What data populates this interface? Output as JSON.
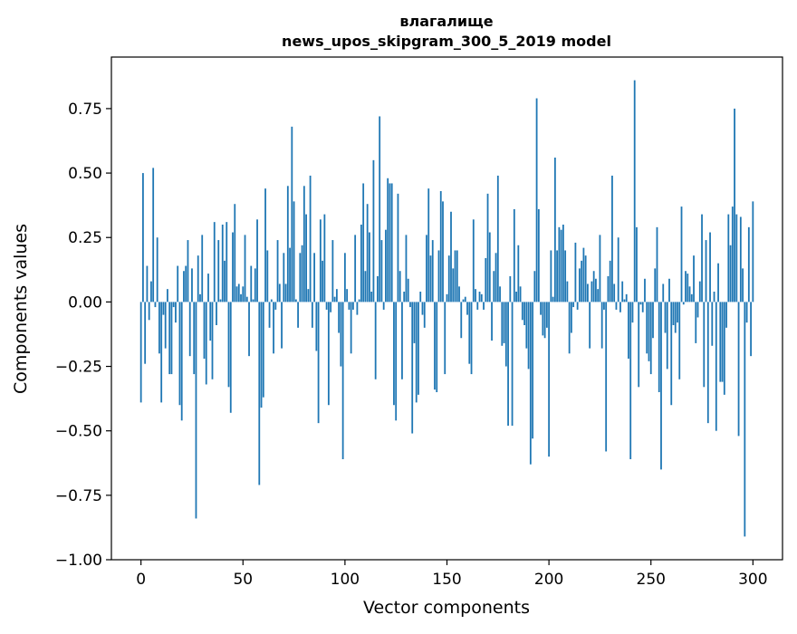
{
  "chart_data": {
    "type": "bar",
    "title": "влагалище",
    "subtitle": "news_upos_skipgram_300_5_2019 model",
    "xlabel": "Vector components",
    "ylabel": "Components values",
    "xlim": [
      -14.5,
      314.5
    ],
    "ylim": [
      -1.0,
      0.95
    ],
    "xticks": [
      0,
      50,
      100,
      150,
      200,
      250,
      300
    ],
    "xtick_labels": [
      "0",
      "50",
      "100",
      "150",
      "200",
      "250",
      "300"
    ],
    "yticks": [
      -1.0,
      -0.75,
      -0.5,
      -0.25,
      0.0,
      0.25,
      0.5,
      0.75
    ],
    "ytick_labels": [
      "−1.00",
      "−0.75",
      "−0.50",
      "−0.25",
      "0.00",
      "0.25",
      "0.50",
      "0.75"
    ],
    "bar_color": "#1f77b4",
    "grid": false,
    "values": [
      -0.39,
      0.5,
      -0.24,
      0.14,
      -0.07,
      0.08,
      0.52,
      -0.02,
      0.25,
      -0.2,
      -0.39,
      -0.05,
      -0.18,
      0.05,
      -0.28,
      -0.28,
      -0.02,
      -0.08,
      0.14,
      -0.4,
      -0.46,
      0.12,
      0.14,
      0.24,
      -0.21,
      0.13,
      -0.28,
      -0.84,
      0.18,
      0.03,
      0.26,
      -0.22,
      -0.32,
      0.11,
      -0.15,
      -0.3,
      0.31,
      -0.09,
      0.24,
      0.01,
      0.3,
      0.16,
      0.31,
      -0.33,
      -0.43,
      0.27,
      0.38,
      0.06,
      0.07,
      0.03,
      0.06,
      0.26,
      0.02,
      -0.21,
      0.14,
      0.01,
      0.13,
      0.32,
      -0.71,
      -0.41,
      -0.37,
      0.44,
      0.2,
      -0.1,
      0.01,
      -0.2,
      -0.03,
      0.24,
      0.07,
      -0.18,
      0.19,
      0.07,
      0.45,
      0.21,
      0.68,
      0.39,
      0.01,
      -0.1,
      0.19,
      0.22,
      0.45,
      0.34,
      0.05,
      0.49,
      -0.1,
      0.19,
      -0.19,
      -0.47,
      0.32,
      0.16,
      0.34,
      -0.03,
      -0.4,
      -0.04,
      0.24,
      0.02,
      0.05,
      -0.12,
      -0.25,
      -0.61,
      0.19,
      0.05,
      -0.03,
      -0.2,
      -0.03,
      0.26,
      -0.05,
      0.01,
      0.3,
      0.46,
      0.12,
      0.38,
      0.27,
      0.04,
      0.55,
      -0.3,
      0.1,
      0.72,
      0.24,
      -0.03,
      0.28,
      0.48,
      0.46,
      0.46,
      -0.4,
      -0.46,
      0.42,
      0.12,
      -0.3,
      0.04,
      0.26,
      0.09,
      -0.02,
      -0.51,
      -0.16,
      -0.39,
      -0.36,
      0.04,
      -0.05,
      -0.1,
      0.26,
      0.44,
      0.18,
      0.24,
      -0.34,
      -0.35,
      0.2,
      0.43,
      0.39,
      -0.28,
      0.03,
      0.18,
      0.35,
      0.13,
      0.2,
      0.2,
      0.06,
      -0.14,
      0.01,
      0.02,
      -0.05,
      -0.24,
      -0.28,
      0.32,
      0.05,
      -0.03,
      0.04,
      0.03,
      -0.03,
      0.17,
      0.42,
      0.27,
      -0.15,
      0.12,
      0.19,
      0.49,
      0.06,
      -0.17,
      -0.16,
      -0.25,
      -0.48,
      0.1,
      -0.48,
      0.36,
      0.04,
      0.22,
      0.06,
      -0.07,
      -0.09,
      -0.18,
      -0.26,
      -0.63,
      -0.53,
      0.12,
      0.79,
      0.36,
      -0.05,
      -0.13,
      -0.14,
      -0.1,
      -0.6,
      0.2,
      0.02,
      0.56,
      0.2,
      0.29,
      0.28,
      0.3,
      0.2,
      0.08,
      -0.2,
      -0.12,
      -0.02,
      0.23,
      -0.03,
      0.13,
      0.16,
      0.21,
      0.18,
      0.07,
      -0.18,
      0.08,
      0.12,
      0.09,
      0.05,
      0.26,
      -0.18,
      -0.03,
      -0.58,
      0.1,
      0.16,
      0.49,
      0.07,
      -0.03,
      0.25,
      -0.04,
      0.08,
      0.01,
      0.03,
      -0.22,
      -0.61,
      -0.08,
      0.86,
      0.29,
      -0.33,
      -0.01,
      -0.04,
      0.09,
      -0.2,
      -0.23,
      -0.28,
      -0.14,
      0.13,
      0.29,
      -0.35,
      -0.65,
      0.07,
      -0.12,
      -0.26,
      0.09,
      -0.4,
      -0.09,
      -0.12,
      -0.08,
      -0.3,
      0.37,
      -0.01,
      0.12,
      0.11,
      0.06,
      0.03,
      0.18,
      -0.16,
      -0.06,
      0.08,
      0.34,
      -0.33,
      0.24,
      -0.47,
      0.27,
      -0.17,
      0.04,
      -0.5,
      0.15,
      -0.31,
      -0.31,
      -0.36,
      -0.1,
      0.34,
      0.22,
      0.37,
      0.75,
      0.34,
      -0.52,
      0.33,
      0.13,
      -0.91,
      -0.08,
      0.29,
      -0.21,
      0.39
    ]
  }
}
